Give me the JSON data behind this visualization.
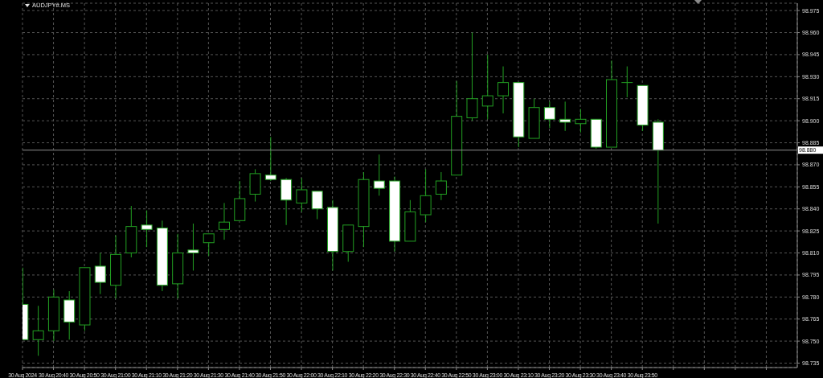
{
  "chart_data": {
    "type": "candlestick",
    "title": "AUDJPY#.MS",
    "color": "#22a022",
    "x": [
      "2024-08-30T20:30",
      "2024-08-30T20:35",
      "2024-08-30T20:40",
      "2024-08-30T20:45",
      "2024-08-30T20:50",
      "2024-08-30T20:55",
      "2024-08-30T21:00",
      "2024-08-30T21:05",
      "2024-08-30T21:10",
      "2024-08-30T21:15",
      "2024-08-30T21:20",
      "2024-08-30T21:25",
      "2024-08-30T21:30",
      "2024-08-30T21:35",
      "2024-08-30T21:40",
      "2024-08-30T21:45",
      "2024-08-30T21:50",
      "2024-08-30T21:55",
      "2024-08-30T22:00",
      "2024-08-30T22:05",
      "2024-08-30T22:10",
      "2024-08-30T22:15",
      "2024-08-30T22:20",
      "2024-08-30T22:25",
      "2024-08-30T22:30",
      "2024-08-30T22:35",
      "2024-08-30T22:40",
      "2024-08-30T22:45",
      "2024-08-30T22:50",
      "2024-08-30T22:55",
      "2024-08-30T23:00",
      "2024-08-30T23:05",
      "2024-08-30T23:10",
      "2024-08-30T23:15",
      "2024-08-30T23:20",
      "2024-08-30T23:25",
      "2024-08-30T23:30",
      "2024-08-30T23:35",
      "2024-08-30T23:40",
      "2024-08-30T23:45",
      "2024-08-30T23:50",
      "2024-08-30T23:55"
    ],
    "ohlc": [
      [
        98.775,
        98.8,
        98.751,
        98.751
      ],
      [
        98.751,
        98.774,
        98.74,
        98.757
      ],
      [
        98.757,
        98.785,
        98.75,
        98.78
      ],
      [
        98.778,
        98.784,
        98.751,
        98.763
      ],
      [
        98.761,
        98.8,
        98.757,
        98.8
      ],
      [
        98.801,
        98.81,
        98.782,
        98.79
      ],
      [
        98.788,
        98.822,
        98.779,
        98.809
      ],
      [
        98.81,
        98.842,
        98.807,
        98.828
      ],
      [
        98.829,
        98.839,
        98.814,
        98.826
      ],
      [
        98.827,
        98.832,
        98.784,
        98.788
      ],
      [
        98.789,
        98.823,
        98.779,
        98.81
      ],
      [
        98.812,
        98.83,
        98.798,
        98.81
      ],
      [
        98.817,
        98.823,
        98.808,
        98.823
      ],
      [
        98.826,
        98.844,
        98.819,
        98.831
      ],
      [
        98.832,
        98.859,
        98.832,
        98.847
      ],
      [
        98.85,
        98.867,
        98.845,
        98.864
      ],
      [
        98.863,
        98.889,
        98.859,
        98.86
      ],
      [
        98.86,
        98.861,
        98.829,
        98.846
      ],
      [
        98.844,
        98.861,
        98.838,
        98.853
      ],
      [
        98.852,
        98.852,
        98.833,
        98.84
      ],
      [
        98.841,
        98.846,
        98.798,
        98.811
      ],
      [
        98.811,
        98.829,
        98.804,
        98.829
      ],
      [
        98.828,
        98.865,
        98.814,
        98.86
      ],
      [
        98.859,
        98.877,
        98.849,
        98.854
      ],
      [
        98.859,
        98.862,
        98.811,
        98.818
      ],
      [
        98.818,
        98.846,
        98.818,
        98.838
      ],
      [
        98.836,
        98.867,
        98.831,
        98.849
      ],
      [
        98.85,
        98.865,
        98.846,
        98.859
      ],
      [
        98.863,
        98.927,
        98.863,
        98.903
      ],
      [
        98.902,
        98.96,
        98.9,
        98.915
      ],
      [
        98.91,
        98.945,
        98.901,
        98.917
      ],
      [
        98.917,
        98.937,
        98.905,
        98.926
      ],
      [
        98.926,
        98.926,
        98.882,
        98.889
      ],
      [
        98.888,
        98.915,
        98.888,
        98.909
      ],
      [
        98.909,
        98.913,
        98.895,
        98.901
      ],
      [
        98.901,
        98.913,
        98.893,
        98.899
      ],
      [
        98.898,
        98.908,
        98.892,
        98.901
      ],
      [
        98.901,
        98.901,
        98.881,
        98.882
      ],
      [
        98.882,
        98.941,
        98.882,
        98.928
      ],
      [
        98.926,
        98.937,
        98.916,
        98.926
      ],
      [
        98.924,
        98.924,
        98.893,
        98.897
      ],
      [
        98.899,
        98.901,
        98.83,
        98.88
      ]
    ],
    "colors": [
      "#ffffff",
      "#000000",
      "#000000",
      "#ffffff",
      "#000000",
      "#ffffff",
      "#000000",
      "#000000",
      "#ffffff",
      "#ffffff",
      "#000000",
      "#ffffff",
      "#000000",
      "#000000",
      "#000000",
      "#000000",
      "#ffffff",
      "#ffffff",
      "#000000",
      "#ffffff",
      "#ffffff",
      "#000000",
      "#000000",
      "#ffffff",
      "#ffffff",
      "#000000",
      "#000000",
      "#000000",
      "#000000",
      "#000000",
      "#000000",
      "#000000",
      "#ffffff",
      "#000000",
      "#ffffff",
      "#ffffff",
      "#000000",
      "#ffffff",
      "#000000",
      "#22a022",
      "#ffffff",
      "#ffffff"
    ],
    "xlim": [
      "2024-08-30T20:30",
      "2024-08-31T00:40"
    ],
    "xticks": [
      {
        "value": "2024-08-30T20:30",
        "label": "30 Aug 2024"
      },
      {
        "value": "2024-08-30T20:40",
        "label": "30 Aug 20:40"
      },
      {
        "value": "2024-08-30T20:50",
        "label": "30 Aug 20:50"
      },
      {
        "value": "2024-08-30T21:00",
        "label": "30 Aug 21:00"
      },
      {
        "value": "2024-08-30T21:10",
        "label": "30 Aug 21:10"
      },
      {
        "value": "2024-08-30T21:20",
        "label": "30 Aug 21:20"
      },
      {
        "value": "2024-08-30T21:30",
        "label": "30 Aug 21:30"
      },
      {
        "value": "2024-08-30T21:40",
        "label": "30 Aug 21:40"
      },
      {
        "value": "2024-08-30T21:50",
        "label": "30 Aug 21:50"
      },
      {
        "value": "2024-08-30T22:00",
        "label": "30 Aug 22:00"
      },
      {
        "value": "2024-08-30T22:10",
        "label": "30 Aug 22:10"
      },
      {
        "value": "2024-08-30T22:20",
        "label": "30 Aug 22:20"
      },
      {
        "value": "2024-08-30T22:30",
        "label": "30 Aug 22:30"
      },
      {
        "value": "2024-08-30T22:40",
        "label": "30 Aug 22:40"
      },
      {
        "value": "2024-08-30T22:50",
        "label": "30 Aug 22:50"
      },
      {
        "value": "2024-08-30T23:00",
        "label": "30 Aug 23:00"
      },
      {
        "value": "2024-08-30T23:10",
        "label": "30 Aug 23:10"
      },
      {
        "value": "2024-08-30T23:20",
        "label": "30 Aug 23:20"
      },
      {
        "value": "2024-08-30T23:30",
        "label": "30 Aug 23:30"
      },
      {
        "value": "2024-08-30T23:40",
        "label": "30 Aug 23:40"
      },
      {
        "value": "2024-08-30T23:50",
        "label": "30 Aug 23:50"
      },
      {
        "value": "2024-08-31T00:00",
        "label": null
      },
      {
        "value": "2024-08-31T00:10",
        "label": null
      },
      {
        "value": "2024-08-31T00:20",
        "label": null
      },
      {
        "value": "2024-08-31T00:30",
        "label": null
      }
    ],
    "ylim": [
      98.732,
      98.98
    ],
    "yticks": [
      98.735,
      {
        "value": 98.75,
        "label": "98.750"
      },
      98.765,
      {
        "value": 98.78,
        "label": "98.780"
      },
      98.795,
      {
        "value": 98.81,
        "label": "98.810"
      },
      98.825,
      {
        "value": 98.84,
        "label": "98.840"
      },
      98.855,
      {
        "value": 98.87,
        "label": "98.870"
      },
      98.885,
      {
        "value": 98.9,
        "label": "98.900"
      },
      98.915,
      {
        "value": 98.93,
        "label": "98.930"
      },
      98.945,
      {
        "value": 98.96,
        "label": "98.960"
      },
      98.975
    ],
    "ref_lines": [
      {
        "axis": "y",
        "value": 98.88,
        "label": "98.880",
        "color": "#8c8c8c"
      }
    ],
    "grid": true
  }
}
